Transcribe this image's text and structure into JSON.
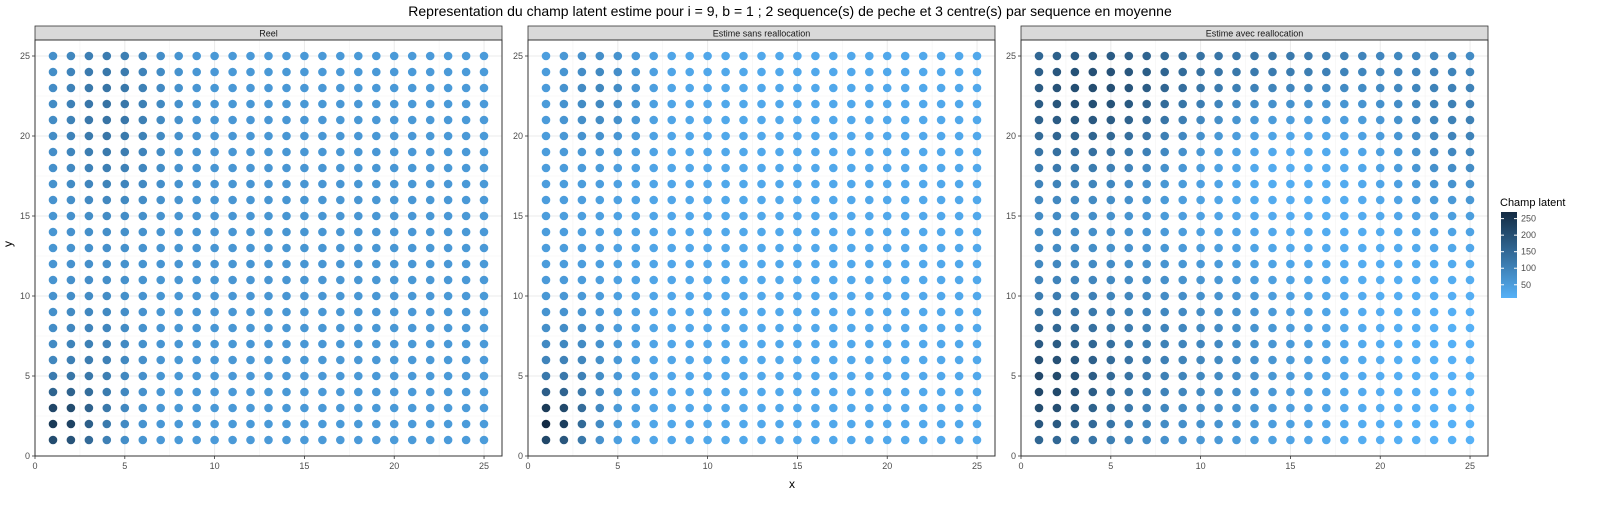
{
  "chart_data": {
    "type": "scatter",
    "title": "Representation du champ latent estime pour i = 9, b = 1 ; 2 sequence(s) de peche et 3 centre(s) par sequence en moyenne",
    "xlabel": "x",
    "ylabel": "y",
    "xlim": [
      0,
      26
    ],
    "ylim": [
      0,
      26
    ],
    "xticks": [
      0,
      5,
      10,
      15,
      20,
      25
    ],
    "yticks": [
      0,
      5,
      10,
      15,
      20,
      25
    ],
    "grid": true,
    "grid_points": {
      "x": [
        1,
        25
      ],
      "y": [
        1,
        25
      ]
    },
    "panels": [
      {
        "name": "Reel",
        "fields": [
          {
            "fn": "gaussian",
            "x": 1,
            "y": 2,
            "sx": 1.6,
            "sy": 1.6,
            "amp": 165
          },
          {
            "fn": "gaussian",
            "x": 3,
            "y": 5,
            "sx": 2.0,
            "sy": 4.0,
            "amp": 55
          },
          {
            "fn": "gaussian",
            "x": 4,
            "y": 22,
            "sx": 2.2,
            "sy": 4.5,
            "amp": 75
          },
          {
            "fn": "gaussian",
            "x": 14,
            "y": 14,
            "sx": 10.0,
            "sy": 10.0,
            "amp": 15
          }
        ],
        "base": 48
      },
      {
        "name": "Estime sans reallocation",
        "fields": [
          {
            "fn": "gaussian",
            "x": 1,
            "y": 2,
            "sx": 1.5,
            "sy": 1.5,
            "amp": 200
          },
          {
            "fn": "gaussian",
            "x": 2,
            "y": 5,
            "sx": 2.2,
            "sy": 3.0,
            "amp": 60
          },
          {
            "fn": "gaussian",
            "x": 4,
            "y": 23,
            "sx": 1.8,
            "sy": 2.8,
            "amp": 55
          },
          {
            "fn": "gaussian",
            "x": 1,
            "y": 14,
            "sx": 3.5,
            "sy": 8.0,
            "amp": 20
          }
        ],
        "base": 28
      },
      {
        "name": "Estime avec reallocation",
        "fields": [
          {
            "fn": "gaussian",
            "x": 1,
            "y": 4,
            "sx": 3.2,
            "sy": 3.5,
            "amp": 150
          },
          {
            "fn": "gaussian",
            "x": 4,
            "y": 23,
            "sx": 4.5,
            "sy": 3.5,
            "amp": 150
          },
          {
            "fn": "gaussian",
            "x": 15,
            "y": 25,
            "sx": 5.0,
            "sy": 2.5,
            "amp": 100
          },
          {
            "fn": "gaussian",
            "x": 10,
            "y": 6,
            "sx": 5.0,
            "sy": 5.0,
            "amp": 70
          },
          {
            "fn": "gaussian",
            "x": 25,
            "y": 21,
            "sx": 3.5,
            "sy": 4.5,
            "amp": 90
          },
          {
            "fn": "gaussian",
            "x": 1,
            "y": 14,
            "sx": 5.0,
            "sy": 12.0,
            "amp": 60
          }
        ],
        "base": 10
      }
    ],
    "legend": {
      "title": "Champ latent",
      "position": "right",
      "breaks": [
        50,
        100,
        150,
        200,
        250
      ],
      "min": 10,
      "max": 270,
      "color_low": "#56B1F7",
      "color_high": "#132B43"
    },
    "colors": {
      "strip_bg": "#d9d9d9",
      "panel_border": "#333333",
      "grid": "#ebebeb",
      "axis_text": "#4d4d4d",
      "text": "#000000"
    }
  }
}
